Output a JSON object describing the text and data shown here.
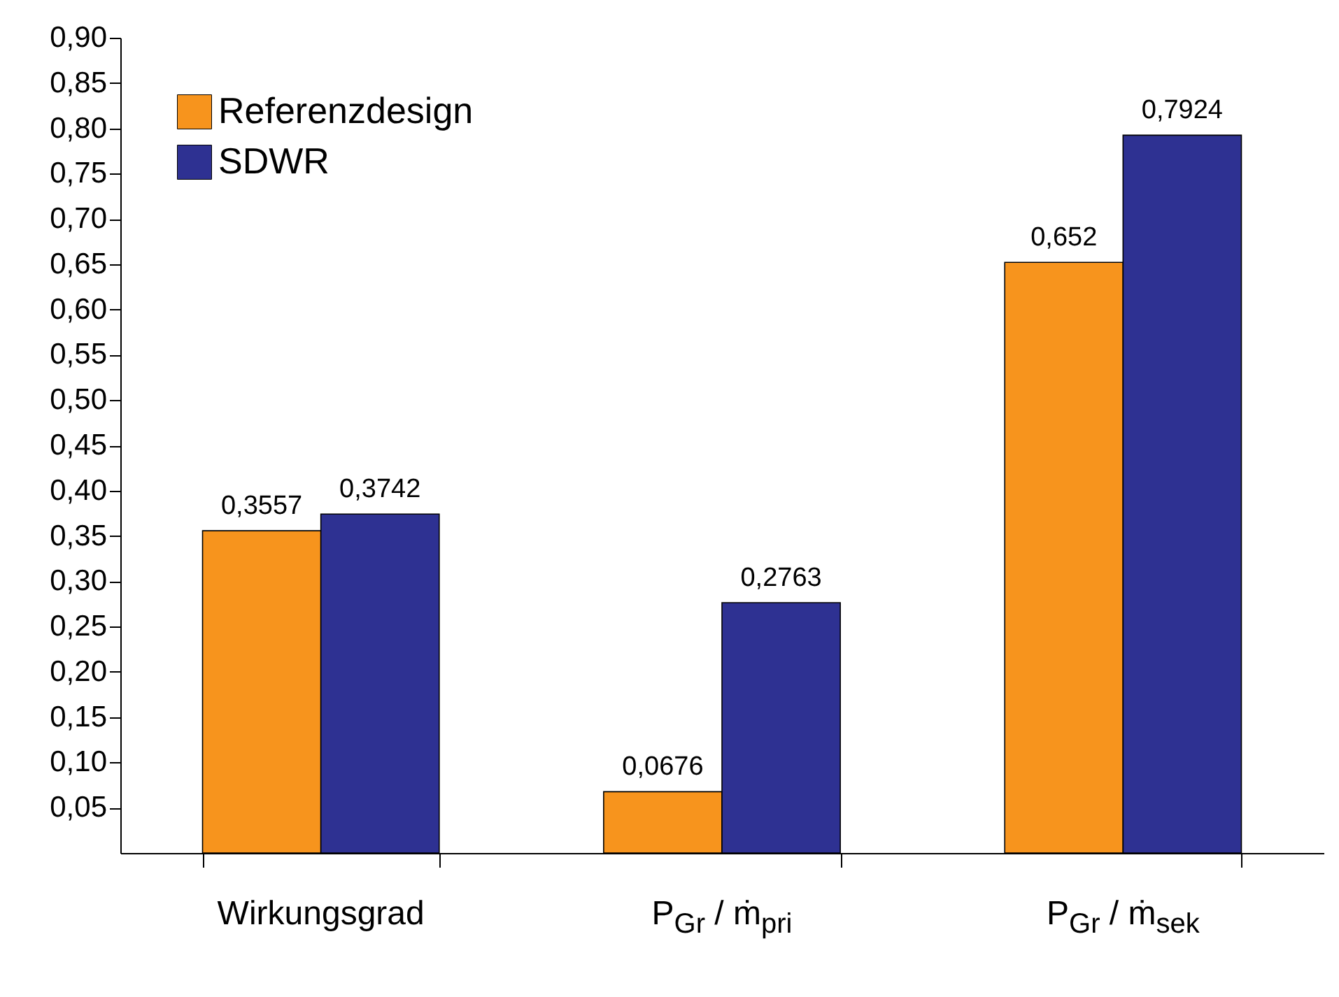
{
  "chart_data": {
    "type": "bar",
    "categories": [
      "Wirkungsgrad",
      "P$_{Gr}$ / ṁ$_{pri}$",
      "P$_{Gr}$ / ṁ$_{sek}$"
    ],
    "series": [
      {
        "name": "Referenzdesign",
        "color": "#f7941d",
        "values": [
          0.3557,
          0.0676,
          0.652
        ],
        "value_labels": [
          "0,3557",
          "0,0676",
          "0,652"
        ]
      },
      {
        "name": "SDWR",
        "color": "#2e3192",
        "values": [
          0.3742,
          0.2763,
          0.7924
        ],
        "value_labels": [
          "0,3742",
          "0,2763",
          "0,7924"
        ]
      }
    ],
    "ylim": [
      0,
      0.9
    ],
    "yticks": [
      {
        "value": 0.05,
        "label": "0,05"
      },
      {
        "value": 0.1,
        "label": "0,10"
      },
      {
        "value": 0.15,
        "label": "0,15"
      },
      {
        "value": 0.2,
        "label": "0,20"
      },
      {
        "value": 0.25,
        "label": "0,25"
      },
      {
        "value": 0.3,
        "label": "0,30"
      },
      {
        "value": 0.35,
        "label": "0,35"
      },
      {
        "value": 0.4,
        "label": "0,40"
      },
      {
        "value": 0.45,
        "label": "0,45"
      },
      {
        "value": 0.5,
        "label": "0,50"
      },
      {
        "value": 0.55,
        "label": "0,55"
      },
      {
        "value": 0.6,
        "label": "0,60"
      },
      {
        "value": 0.65,
        "label": "0,65"
      },
      {
        "value": 0.7,
        "label": "0,70"
      },
      {
        "value": 0.75,
        "label": "0,75"
      },
      {
        "value": 0.8,
        "label": "0,80"
      },
      {
        "value": 0.85,
        "label": "0,85"
      },
      {
        "value": 0.9,
        "label": "0,90"
      }
    ],
    "legend": "top left",
    "grid": false
  }
}
